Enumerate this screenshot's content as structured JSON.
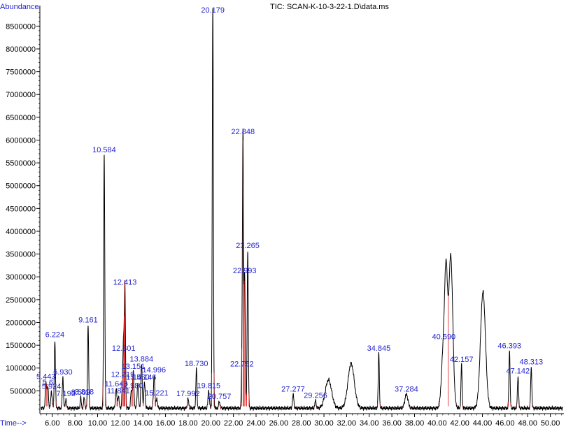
{
  "chart_data": {
    "type": "line",
    "title": "TIC: SCAN-K-10-3-22-1.D\\data.ms",
    "ylabel": "Abundance",
    "xlabel": "Time-->",
    "xlim": [
      4.9,
      51.2
    ],
    "ylim": [
      0,
      8950000
    ],
    "x_ticks": [
      "6.00",
      "8.00",
      "10.00",
      "12.00",
      "14.00",
      "16.00",
      "18.00",
      "20.00",
      "22.00",
      "24.00",
      "26.00",
      "28.00",
      "30.00",
      "32.00",
      "34.00",
      "36.00",
      "38.00",
      "40.00",
      "42.00",
      "44.00",
      "46.00",
      "48.00",
      "50.00"
    ],
    "y_ticks": [
      "500000",
      "1000000",
      "1500000",
      "2000000",
      "2500000",
      "3000000",
      "3500000",
      "4000000",
      "4500000",
      "5000000",
      "5500000",
      "6000000",
      "6500000",
      "7000000",
      "7500000",
      "8000000",
      "8500000"
    ],
    "colors": {
      "trace": "#000000",
      "baseline_marks": "#e01010",
      "labels": "#1f1fd0",
      "axis": "#000000"
    },
    "baseline": 120000,
    "peaks": [
      {
        "t": 5.443,
        "label": "5.443",
        "height": 580000,
        "width": 0.06
      },
      {
        "t": 5.6,
        "label": "5.6",
        "height": 450000,
        "width": 0.06
      },
      {
        "t": 5.924,
        "label": "5.924",
        "height": 360000,
        "width": 0.06
      },
      {
        "t": 6.224,
        "label": "6.224",
        "height": 1500000,
        "width": 0.05
      },
      {
        "t": 6.93,
        "label": "6.930",
        "height": 680000,
        "width": 0.05
      },
      {
        "t": 7.193,
        "label": "7.193",
        "height": 200000,
        "width": 0.05
      },
      {
        "t": 8.509,
        "label": "8.509",
        "height": 230000,
        "width": 0.05
      },
      {
        "t": 8.818,
        "label": "8.818",
        "height": 240000,
        "width": 0.05
      },
      {
        "t": 9.161,
        "label": "9.161",
        "height": 1820000,
        "width": 0.05
      },
      {
        "t": 10.584,
        "label": "10.584",
        "height": 5550000,
        "width": 0.05
      },
      {
        "t": 11.643,
        "label": "11.643",
        "height": 420000,
        "width": 0.06
      },
      {
        "t": 11.841,
        "label": "11.841",
        "height": 260000,
        "width": 0.06
      },
      {
        "t": 12.219,
        "label": "12.219",
        "height": 620000,
        "width": 0.06
      },
      {
        "t": 12.301,
        "label": "12.301",
        "height": 1200000,
        "width": 0.05
      },
      {
        "t": 12.413,
        "label": "12.413",
        "height": 2650000,
        "width": 0.05
      },
      {
        "t": 12.98,
        "label": "12.980",
        "height": 380000,
        "width": 0.06
      },
      {
        "t": 13.151,
        "label": "13.151",
        "height": 800000,
        "width": 0.06
      },
      {
        "t": 13.55,
        "label": "13.550",
        "height": 560000,
        "width": 0.06
      },
      {
        "t": 13.884,
        "label": "13.884",
        "height": 960000,
        "width": 0.06
      },
      {
        "t": 14.146,
        "label": "14.146",
        "height": 560000,
        "width": 0.06
      },
      {
        "t": 14.996,
        "label": "14.996",
        "height": 720000,
        "width": 0.06
      },
      {
        "t": 15.221,
        "label": "15.221",
        "height": 220000,
        "width": 0.06
      },
      {
        "t": 17.992,
        "label": "17.992",
        "height": 200000,
        "width": 0.06
      },
      {
        "t": 18.73,
        "label": "18.730",
        "height": 860000,
        "width": 0.05
      },
      {
        "t": 19.815,
        "label": "19.815",
        "height": 380000,
        "width": 0.06
      },
      {
        "t": 20.179,
        "label": "20.179",
        "height": 8750000,
        "width": 0.05
      },
      {
        "t": 20.757,
        "label": "20.757",
        "height": 140000,
        "width": 0.06
      },
      {
        "t": 22.752,
        "label": "22.752",
        "height": 850000,
        "width": 0.05
      },
      {
        "t": 22.848,
        "label": "22.848",
        "height": 5950000,
        "width": 0.05
      },
      {
        "t": 22.993,
        "label": "22.993",
        "height": 2900000,
        "width": 0.05
      },
      {
        "t": 23.265,
        "label": "23.265",
        "height": 3450000,
        "width": 0.05
      },
      {
        "t": 27.277,
        "label": "27.277",
        "height": 300000,
        "width": 0.06
      },
      {
        "t": 29.256,
        "label": "29.256",
        "height": 160000,
        "width": 0.06
      },
      {
        "t": 30.4,
        "label": "",
        "height": 620000,
        "width": 0.28
      },
      {
        "t": 32.4,
        "label": "",
        "height": 980000,
        "width": 0.28
      },
      {
        "t": 34.845,
        "label": "34.845",
        "height": 1200000,
        "width": 0.05
      },
      {
        "t": 37.284,
        "label": "37.284",
        "height": 300000,
        "width": 0.14
      },
      {
        "t": 40.59,
        "label": "40.590",
        "height": 1450000,
        "width": 0.18
      },
      {
        "t": 40.8,
        "label": "",
        "height": 2250000,
        "width": 0.12
      },
      {
        "t": 41.2,
        "label": "",
        "height": 3350000,
        "width": 0.18
      },
      {
        "t": 42.157,
        "label": "42.157",
        "height": 950000,
        "width": 0.05
      },
      {
        "t": 44.05,
        "label": "",
        "height": 2550000,
        "width": 0.22
      },
      {
        "t": 46.393,
        "label": "46.393",
        "height": 1250000,
        "width": 0.05
      },
      {
        "t": 47.142,
        "label": "47.142",
        "height": 700000,
        "width": 0.05
      },
      {
        "t": 48.313,
        "label": "48.313",
        "height": 900000,
        "width": 0.05
      }
    ]
  }
}
